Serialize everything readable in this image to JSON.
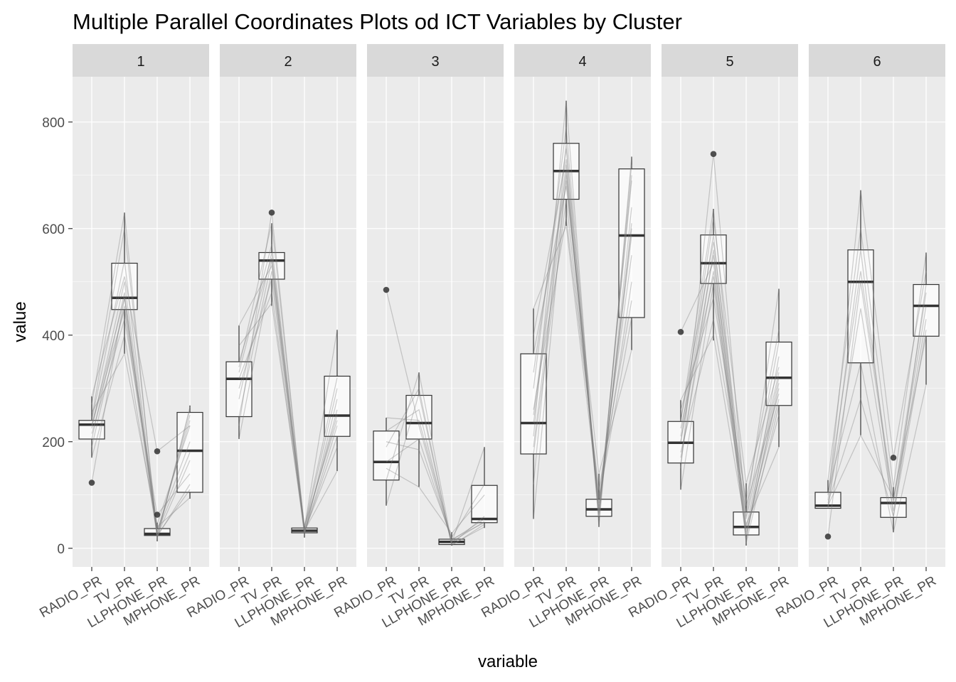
{
  "chart_data": {
    "type": "boxplot_parallel_coordinates",
    "title": "Multiple Parallel Coordinates Plots od ICT Variables by Cluster",
    "xlabel": "variable",
    "ylabel": "value",
    "ylim": [
      -35,
      885
    ],
    "yticks": [
      0,
      200,
      400,
      600,
      800
    ],
    "variables": [
      "RADIO_PR",
      "TV_PR",
      "LLPHONE_PR",
      "MPHONE_PR"
    ],
    "grid": true,
    "legend": "none",
    "colors": {
      "panel_bg": "#ebebeb",
      "grid": "#ffffff",
      "strip_bg": "#d9d9d9",
      "box_fill": "#ffffff",
      "box_line": "#333333",
      "pcp_line": "#7f7f7f",
      "outlier": "#333333"
    },
    "facets": [
      {
        "label": "1",
        "boxes": [
          {
            "variable": "RADIO_PR",
            "min": 170,
            "q1": 205,
            "median": 232,
            "q3": 240,
            "max": 285,
            "outliers": [
              123
            ]
          },
          {
            "variable": "TV_PR",
            "min": 365,
            "q1": 448,
            "median": 470,
            "q3": 535,
            "max": 630,
            "outliers": []
          },
          {
            "variable": "LLPHONE_PR",
            "min": 13,
            "q1": 24,
            "median": 27,
            "q3": 37,
            "max": 48,
            "outliers": [
              182,
              63
            ]
          },
          {
            "variable": "MPHONE_PR",
            "min": 93,
            "q1": 105,
            "median": 183,
            "q3": 255,
            "max": 268,
            "outliers": []
          }
        ],
        "lines": [
          [
            123,
            470,
            30,
            180
          ],
          [
            170,
            400,
            25,
            110
          ],
          [
            190,
            455,
            45,
            230
          ],
          [
            205,
            480,
            20,
            260
          ],
          [
            215,
            430,
            63,
            140
          ],
          [
            225,
            500,
            28,
            250
          ],
          [
            232,
            470,
            35,
            200
          ],
          [
            240,
            540,
            22,
            120
          ],
          [
            245,
            600,
            30,
            240
          ],
          [
            255,
            365,
            40,
            95
          ],
          [
            270,
            630,
            18,
            265
          ],
          [
            285,
            510,
            182,
            230
          ],
          [
            230,
            448,
            24,
            165
          ]
        ]
      },
      {
        "label": "2",
        "boxes": [
          {
            "variable": "RADIO_PR",
            "min": 205,
            "q1": 247,
            "median": 318,
            "q3": 350,
            "max": 418,
            "outliers": []
          },
          {
            "variable": "TV_PR",
            "min": 455,
            "q1": 505,
            "median": 540,
            "q3": 555,
            "max": 610,
            "outliers": [
              630
            ]
          },
          {
            "variable": "LLPHONE_PR",
            "min": 20,
            "q1": 29,
            "median": 33,
            "q3": 38,
            "max": 42,
            "outliers": []
          },
          {
            "variable": "MPHONE_PR",
            "min": 145,
            "q1": 210,
            "median": 249,
            "q3": 323,
            "max": 410,
            "outliers": []
          }
        ],
        "lines": [
          [
            205,
            520,
            30,
            210
          ],
          [
            230,
            630,
            35,
            250
          ],
          [
            247,
            540,
            25,
            280
          ],
          [
            280,
            555,
            40,
            320
          ],
          [
            300,
            505,
            33,
            145
          ],
          [
            318,
            480,
            28,
            230
          ],
          [
            340,
            610,
            38,
            410
          ],
          [
            350,
            545,
            30,
            260
          ],
          [
            380,
            460,
            36,
            300
          ],
          [
            418,
            530,
            42,
            240
          ],
          [
            330,
            570,
            32,
            190
          ]
        ]
      },
      {
        "label": "3",
        "boxes": [
          {
            "variable": "RADIO_PR",
            "min": 80,
            "q1": 128,
            "median": 162,
            "q3": 220,
            "max": 245,
            "outliers": [
              485
            ]
          },
          {
            "variable": "TV_PR",
            "min": 115,
            "q1": 205,
            "median": 235,
            "q3": 287,
            "max": 330,
            "outliers": []
          },
          {
            "variable": "LLPHONE_PR",
            "min": 5,
            "q1": 7,
            "median": 12,
            "q3": 17,
            "max": 30,
            "outliers": []
          },
          {
            "variable": "MPHONE_PR",
            "min": 38,
            "q1": 48,
            "median": 55,
            "q3": 118,
            "max": 190,
            "outliers": []
          }
        ],
        "lines": [
          [
            485,
            230,
            12,
            50
          ],
          [
            80,
            290,
            7,
            40
          ],
          [
            128,
            330,
            10,
            190
          ],
          [
            162,
            205,
            15,
            55
          ],
          [
            200,
            185,
            20,
            120
          ],
          [
            220,
            260,
            8,
            60
          ],
          [
            245,
            240,
            17,
            48
          ],
          [
            150,
            115,
            28,
            100
          ],
          [
            190,
            300,
            5,
            45
          ]
        ]
      },
      {
        "label": "4",
        "boxes": [
          {
            "variable": "RADIO_PR",
            "min": 55,
            "q1": 177,
            "median": 235,
            "q3": 365,
            "max": 450,
            "outliers": []
          },
          {
            "variable": "TV_PR",
            "min": 605,
            "q1": 655,
            "median": 708,
            "q3": 760,
            "max": 840,
            "outliers": []
          },
          {
            "variable": "LLPHONE_PR",
            "min": 40,
            "q1": 60,
            "median": 73,
            "q3": 92,
            "max": 140,
            "outliers": []
          },
          {
            "variable": "MPHONE_PR",
            "min": 372,
            "q1": 433,
            "median": 587,
            "q3": 712,
            "max": 735,
            "outliers": []
          }
        ],
        "lines": [
          [
            55,
            700,
            73,
            600
          ],
          [
            120,
            760,
            60,
            720
          ],
          [
            177,
            655,
            92,
            433
          ],
          [
            210,
            840,
            40,
            735
          ],
          [
            235,
            708,
            80,
            587
          ],
          [
            260,
            620,
            110,
            465
          ],
          [
            300,
            790,
            65,
            700
          ],
          [
            365,
            680,
            140,
            372
          ],
          [
            400,
            730,
            55,
            640
          ],
          [
            450,
            605,
            85,
            500
          ],
          [
            330,
            750,
            70,
            690
          ],
          [
            190,
            690,
            95,
            550
          ],
          [
            250,
            720,
            62,
            610
          ]
        ]
      },
      {
        "label": "5",
        "boxes": [
          {
            "variable": "RADIO_PR",
            "min": 110,
            "q1": 160,
            "median": 198,
            "q3": 238,
            "max": 278,
            "outliers": [
              406
            ]
          },
          {
            "variable": "TV_PR",
            "min": 390,
            "q1": 497,
            "median": 535,
            "q3": 588,
            "max": 637,
            "outliers": [
              740
            ]
          },
          {
            "variable": "LLPHONE_PR",
            "min": 5,
            "q1": 25,
            "median": 40,
            "q3": 68,
            "max": 122,
            "outliers": []
          },
          {
            "variable": "MPHONE_PR",
            "min": 190,
            "q1": 268,
            "median": 320,
            "q3": 387,
            "max": 487,
            "outliers": []
          }
        ],
        "lines": [
          [
            406,
            535,
            40,
            320
          ],
          [
            110,
            497,
            25,
            300
          ],
          [
            150,
            740,
            60,
            387
          ],
          [
            160,
            560,
            10,
            268
          ],
          [
            180,
            430,
            68,
            487
          ],
          [
            198,
            588,
            30,
            250
          ],
          [
            210,
            620,
            122,
            340
          ],
          [
            225,
            510,
            45,
            190
          ],
          [
            238,
            637,
            15,
            360
          ],
          [
            260,
            470,
            90,
            410
          ],
          [
            278,
            400,
            35,
            280
          ],
          [
            200,
            550,
            55,
            330
          ],
          [
            170,
            520,
            20,
            310
          ],
          [
            240,
            575,
            80,
            290
          ]
        ]
      },
      {
        "label": "6",
        "boxes": [
          {
            "variable": "RADIO_PR",
            "min": 75,
            "q1": 75,
            "median": 80,
            "q3": 105,
            "max": 128,
            "outliers": [
              22
            ]
          },
          {
            "variable": "TV_PR",
            "min": 212,
            "q1": 348,
            "median": 500,
            "q3": 560,
            "max": 672,
            "outliers": []
          },
          {
            "variable": "LLPHONE_PR",
            "min": 30,
            "q1": 58,
            "median": 85,
            "q3": 95,
            "max": 115,
            "outliers": [
              170
            ]
          },
          {
            "variable": "MPHONE_PR",
            "min": 307,
            "q1": 398,
            "median": 455,
            "q3": 495,
            "max": 555,
            "outliers": []
          }
        ],
        "lines": [
          [
            22,
            500,
            85,
            455
          ],
          [
            75,
            560,
            58,
            495
          ],
          [
            80,
            212,
            95,
            398
          ],
          [
            90,
            672,
            170,
            520
          ],
          [
            105,
            348,
            30,
            307
          ],
          [
            128,
            600,
            115,
            555
          ],
          [
            78,
            450,
            70,
            430
          ],
          [
            100,
            520,
            90,
            480
          ],
          [
            85,
            280,
            60,
            410
          ]
        ]
      }
    ]
  }
}
